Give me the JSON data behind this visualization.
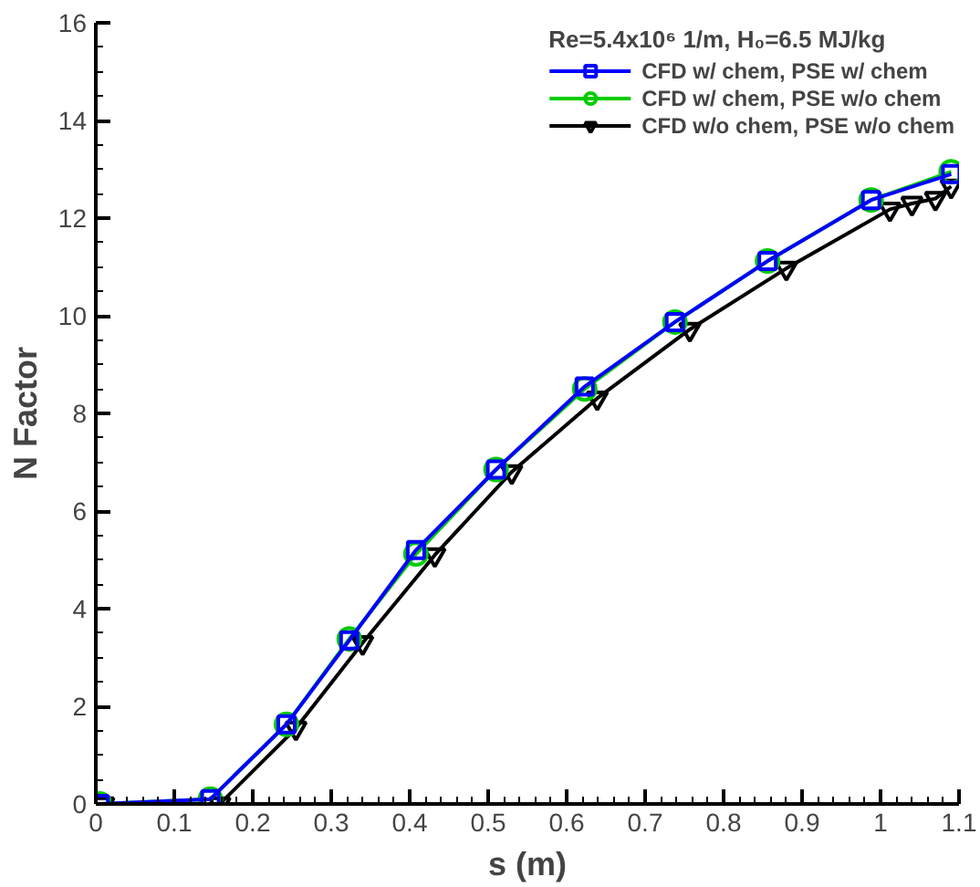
{
  "chart_data": {
    "type": "line",
    "title": "Re=5.4x10⁶ 1/m, H₀=6.5 MJ/kg",
    "xlabel": "s (m)",
    "ylabel": "N Factor",
    "xlim": [
      0,
      1.1
    ],
    "ylim": [
      0,
      16
    ],
    "xticks": [
      0,
      0.1,
      0.2,
      0.3,
      0.4,
      0.5,
      0.6,
      0.7,
      0.8,
      0.9,
      1,
      1.1
    ],
    "yticks": [
      0,
      2,
      4,
      6,
      8,
      10,
      12,
      14,
      16
    ],
    "grid": false,
    "legend": "top right",
    "line_style": "solid",
    "series": [
      {
        "name": "CFD w/ chem, PSE w/ chem",
        "color": "#0000ff",
        "marker": "square",
        "x": [
          0.005,
          0.146,
          0.243,
          0.323,
          0.408,
          0.51,
          0.623,
          0.738,
          0.856,
          0.988,
          1.09
        ],
        "values": [
          0,
          0.1,
          1.63,
          3.35,
          5.2,
          6.85,
          8.55,
          9.87,
          11.12,
          12.37,
          12.9
        ]
      },
      {
        "name": "CFD w/ chem, PSE w/o chem",
        "color": "#00cc00",
        "marker": "circle",
        "x": [
          0.005,
          0.146,
          0.243,
          0.323,
          0.408,
          0.51,
          0.623,
          0.738,
          0.856,
          0.988,
          1.09
        ],
        "values": [
          0,
          0.1,
          1.63,
          3.38,
          5.12,
          6.85,
          8.5,
          9.87,
          11.12,
          12.37,
          12.95
        ]
      },
      {
        "name": "CFD w/o chem, PSE w/o chem",
        "color": "#000000",
        "marker": "triangle",
        "x": [
          0.01,
          0.158,
          0.255,
          0.34,
          0.432,
          0.53,
          0.639,
          0.757,
          0.88,
          1.012,
          1.04,
          1.07,
          1.09
        ],
        "values": [
          0,
          0,
          1.55,
          3.3,
          5.1,
          6.8,
          8.31,
          9.72,
          10.97,
          12.18,
          12.3,
          12.4,
          12.65
        ]
      }
    ]
  }
}
